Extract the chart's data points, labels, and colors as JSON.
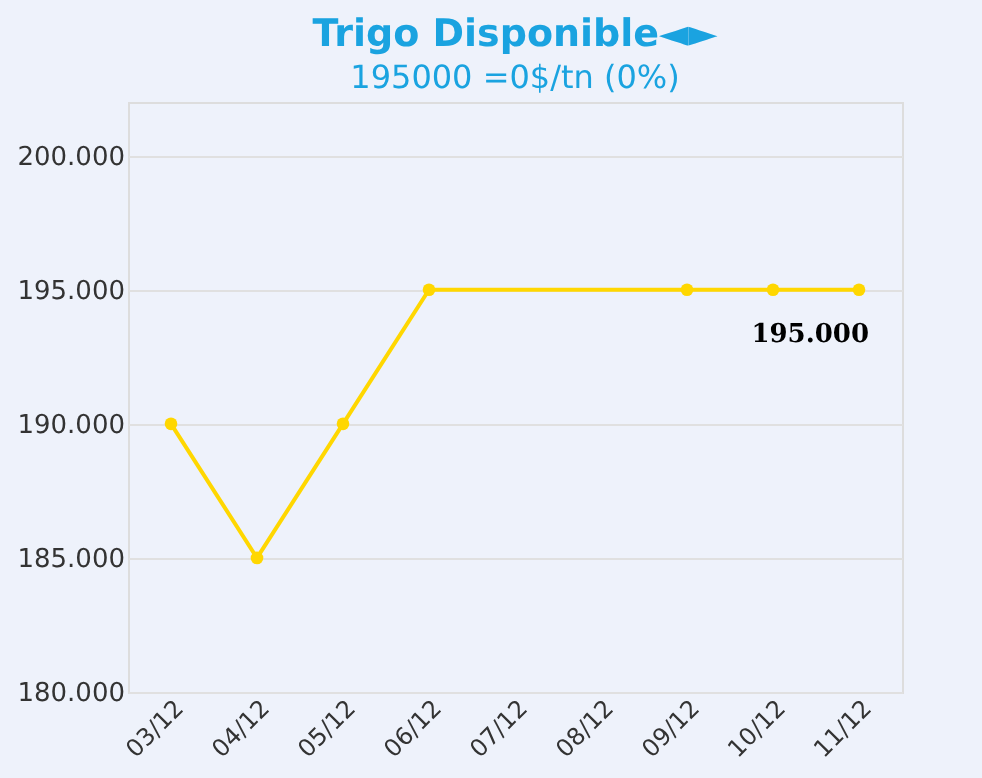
{
  "chart_data": {
    "type": "line",
    "title": "Trigo Disponible◄►",
    "subtitle": "195000 =0$/tn (0%)",
    "categories": [
      "03/12",
      "04/12",
      "05/12",
      "06/12",
      "07/12",
      "08/12",
      "09/12",
      "10/12",
      "11/12"
    ],
    "series": [
      {
        "color": "#ffd700",
        "values": [
          190000,
          185000,
          190000,
          195000,
          null,
          null,
          195000,
          195000,
          195000
        ]
      }
    ],
    "ylim": [
      180000,
      202000
    ],
    "yticks": [
      {
        "value": 180000,
        "label": "180.000"
      },
      {
        "value": 185000,
        "label": "185.000"
      },
      {
        "value": 190000,
        "label": "190.000"
      },
      {
        "value": 195000,
        "label": "195.000"
      },
      {
        "value": 200000,
        "label": "200.000"
      }
    ],
    "annotations": [
      {
        "text": "195.000",
        "x": "11/12",
        "y": 195000
      }
    ],
    "grid": "y",
    "marker": "circle",
    "line_style": "solid"
  }
}
